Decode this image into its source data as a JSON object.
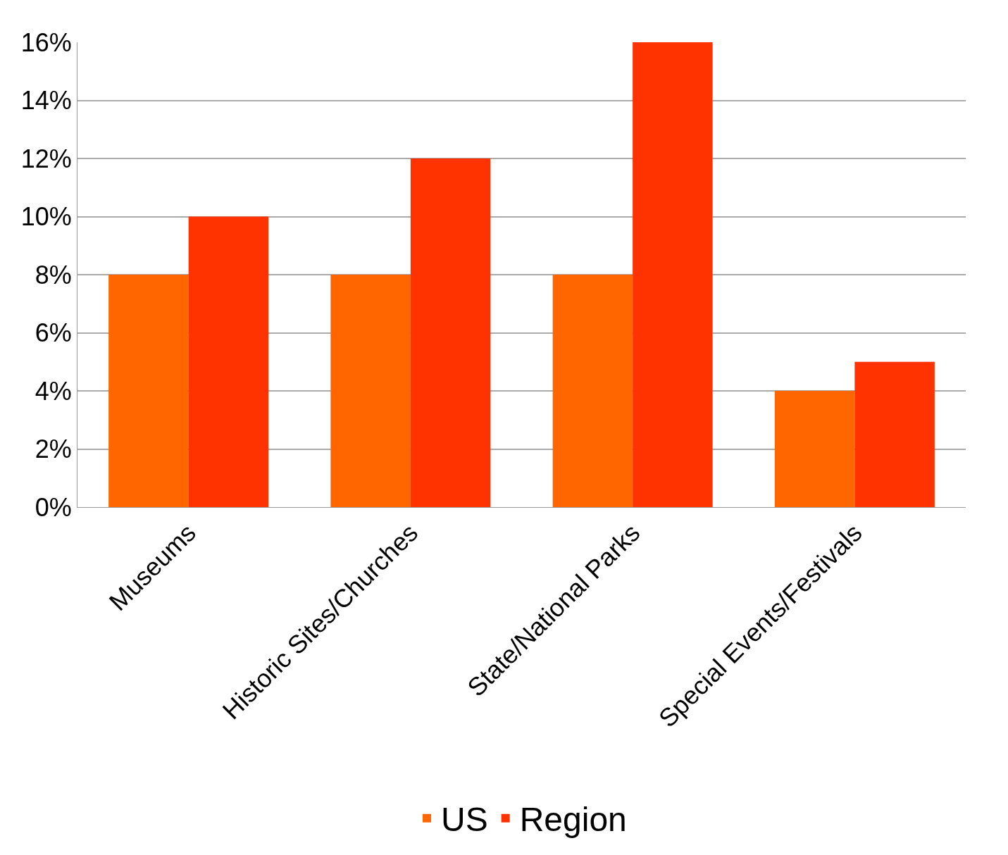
{
  "chart_data": {
    "type": "bar",
    "categories": [
      "Museums",
      "Historic Sites/Churches",
      "State/National Parks",
      "Special Events/Festivals"
    ],
    "series": [
      {
        "name": "US",
        "color": "#ff6600",
        "values": [
          8,
          8,
          8,
          4
        ]
      },
      {
        "name": "Region",
        "color": "#ff3300",
        "values": [
          10,
          12,
          16,
          5
        ]
      }
    ],
    "ylim": [
      0,
      16
    ],
    "yticks": [
      {
        "value": 0,
        "label": "0%"
      },
      {
        "value": 2,
        "label": "2%"
      },
      {
        "value": 4,
        "label": "4%"
      },
      {
        "value": 6,
        "label": "6%"
      },
      {
        "value": 8,
        "label": "8%"
      },
      {
        "value": 10,
        "label": "10%"
      },
      {
        "value": 12,
        "label": "12%"
      },
      {
        "value": 14,
        "label": "14%"
      },
      {
        "value": 16,
        "label": "16%"
      }
    ],
    "grid": "y",
    "legend": "bottom"
  }
}
